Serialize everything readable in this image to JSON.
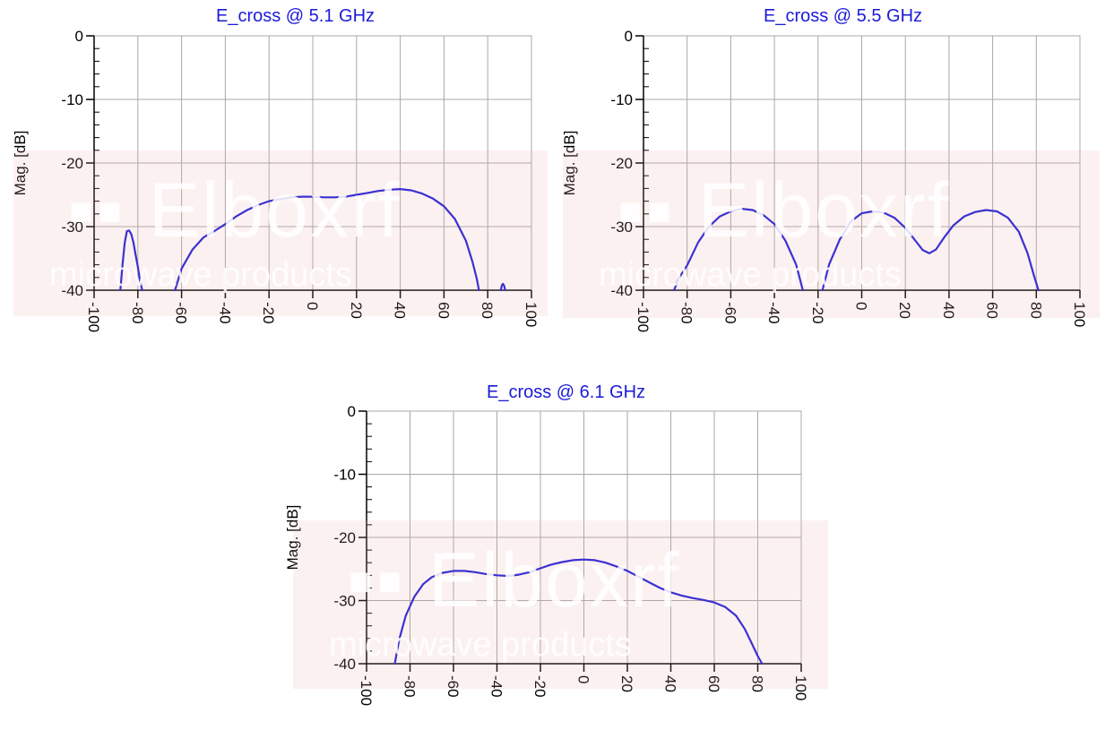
{
  "watermark": {
    "logo": "Elboxrf",
    "tagline": "microwave products"
  },
  "colors": {
    "curve": "#1b1bd8",
    "grid": "#a8a8a8",
    "axis": "#000000",
    "watermark": "#eeb0b0"
  },
  "chart_data": [
    {
      "type": "line",
      "title": "E_cross @ 5.1 GHz",
      "xlabel": "",
      "ylabel": "Mag. [dB]",
      "xlim": [
        -100,
        100
      ],
      "ylim": [
        -40,
        0
      ],
      "xticks": [
        -100,
        -80,
        -60,
        -40,
        -20,
        0,
        20,
        40,
        60,
        80,
        100
      ],
      "yticks": [
        0,
        -10,
        -20,
        -30,
        -40
      ],
      "grid": true,
      "series": [
        {
          "segments": [
            [
              [
                -88,
                -40
              ],
              [
                -87,
                -36
              ],
              [
                -86,
                -32.5
              ],
              [
                -85,
                -30.7
              ],
              [
                -84,
                -30.6
              ],
              [
                -83,
                -31.2
              ],
              [
                -82,
                -32.5
              ],
              [
                -81,
                -34.5
              ],
              [
                -80,
                -36.3
              ],
              [
                -79,
                -38.5
              ],
              [
                -78,
                -40
              ]
            ],
            [
              [
                -63,
                -40
              ],
              [
                -60,
                -36.6
              ],
              [
                -55,
                -33.6
              ],
              [
                -50,
                -31.7
              ],
              [
                -45,
                -30.7
              ],
              [
                -40,
                -29.6
              ],
              [
                -35,
                -28.4
              ],
              [
                -30,
                -27.4
              ],
              [
                -25,
                -26.6
              ],
              [
                -20,
                -26.0
              ],
              [
                -15,
                -25.7
              ],
              [
                -10,
                -25.4
              ],
              [
                -5,
                -25.3
              ],
              [
                0,
                -25.3
              ],
              [
                5,
                -25.4
              ],
              [
                10,
                -25.4
              ],
              [
                15,
                -25.3
              ],
              [
                20,
                -25.0
              ],
              [
                25,
                -24.7
              ],
              [
                30,
                -24.4
              ],
              [
                35,
                -24.2
              ],
              [
                40,
                -24.1
              ],
              [
                45,
                -24.3
              ],
              [
                50,
                -24.8
              ],
              [
                55,
                -25.6
              ],
              [
                60,
                -26.8
              ],
              [
                65,
                -28.8
              ],
              [
                70,
                -32.2
              ],
              [
                73,
                -35.5
              ],
              [
                75,
                -38.2
              ],
              [
                76,
                -40
              ]
            ],
            [
              [
                86,
                -40
              ],
              [
                86.5,
                -39.2
              ],
              [
                87,
                -39.0
              ],
              [
                87.5,
                -39.3
              ],
              [
                88,
                -40
              ]
            ]
          ]
        }
      ]
    },
    {
      "type": "line",
      "title": "E_cross @ 5.5 GHz",
      "xlabel": "",
      "ylabel": "Mag. [dB]",
      "xlim": [
        -100,
        100
      ],
      "ylim": [
        -40,
        0
      ],
      "xticks": [
        -100,
        -80,
        -60,
        -40,
        -20,
        0,
        20,
        40,
        60,
        80,
        100
      ],
      "yticks": [
        0,
        -10,
        -20,
        -30,
        -40
      ],
      "grid": true,
      "series": [
        {
          "segments": [
            [
              [
                -86,
                -40
              ],
              [
                -84,
                -38.2
              ],
              [
                -80,
                -36.1
              ],
              [
                -75,
                -32.5
              ],
              [
                -70,
                -30.0
              ],
              [
                -65,
                -28.4
              ],
              [
                -60,
                -27.6
              ],
              [
                -55,
                -27.2
              ],
              [
                -50,
                -27.4
              ],
              [
                -45,
                -28.2
              ],
              [
                -40,
                -29.6
              ],
              [
                -35,
                -32.2
              ],
              [
                -30,
                -36.0
              ],
              [
                -27,
                -40
              ]
            ],
            [
              [
                -18,
                -40
              ],
              [
                -15,
                -36.0
              ],
              [
                -10,
                -32.0
              ],
              [
                -5,
                -29.2
              ],
              [
                0,
                -27.9
              ],
              [
                5,
                -27.6
              ],
              [
                10,
                -27.8
              ],
              [
                15,
                -28.6
              ],
              [
                20,
                -30.2
              ],
              [
                25,
                -32.4
              ],
              [
                28,
                -33.7
              ],
              [
                31,
                -34.2
              ],
              [
                34,
                -33.6
              ],
              [
                38,
                -31.6
              ],
              [
                42,
                -29.8
              ],
              [
                47,
                -28.4
              ],
              [
                52,
                -27.7
              ],
              [
                57,
                -27.4
              ],
              [
                62,
                -27.6
              ],
              [
                67,
                -28.6
              ],
              [
                72,
                -30.8
              ],
              [
                76,
                -34.2
              ],
              [
                79,
                -37.8
              ],
              [
                81,
                -40
              ]
            ]
          ]
        }
      ]
    },
    {
      "type": "line",
      "title": "E_cross @ 6.1 GHz",
      "xlabel": "",
      "ylabel": "Mag. [dB]",
      "xlim": [
        -100,
        100
      ],
      "ylim": [
        -40,
        0
      ],
      "xticks": [
        -100,
        -80,
        -60,
        -40,
        -20,
        0,
        20,
        40,
        60,
        80,
        100
      ],
      "yticks": [
        0,
        -10,
        -20,
        -30,
        -40
      ],
      "grid": true,
      "series": [
        {
          "segments": [
            [
              [
                -87,
                -40
              ],
              [
                -85,
                -36.2
              ],
              [
                -82,
                -32.4
              ],
              [
                -78,
                -29.4
              ],
              [
                -74,
                -27.4
              ],
              [
                -70,
                -26.3
              ],
              [
                -65,
                -25.6
              ],
              [
                -60,
                -25.3
              ],
              [
                -55,
                -25.3
              ],
              [
                -50,
                -25.5
              ],
              [
                -45,
                -25.8
              ],
              [
                -40,
                -26.0
              ],
              [
                -35,
                -26.1
              ],
              [
                -30,
                -25.9
              ],
              [
                -25,
                -25.5
              ],
              [
                -20,
                -24.9
              ],
              [
                -15,
                -24.3
              ],
              [
                -10,
                -23.9
              ],
              [
                -5,
                -23.6
              ],
              [
                0,
                -23.5
              ],
              [
                5,
                -23.6
              ],
              [
                10,
                -24.0
              ],
              [
                15,
                -24.6
              ],
              [
                20,
                -25.3
              ],
              [
                25,
                -26.2
              ],
              [
                30,
                -27.1
              ],
              [
                35,
                -28.0
              ],
              [
                40,
                -28.7
              ],
              [
                45,
                -29.2
              ],
              [
                50,
                -29.6
              ],
              [
                55,
                -29.9
              ],
              [
                60,
                -30.3
              ],
              [
                65,
                -31.0
              ],
              [
                70,
                -32.4
              ],
              [
                74,
                -34.5
              ],
              [
                77,
                -36.6
              ],
              [
                80,
                -38.8
              ],
              [
                82,
                -40
              ]
            ]
          ]
        }
      ]
    }
  ]
}
